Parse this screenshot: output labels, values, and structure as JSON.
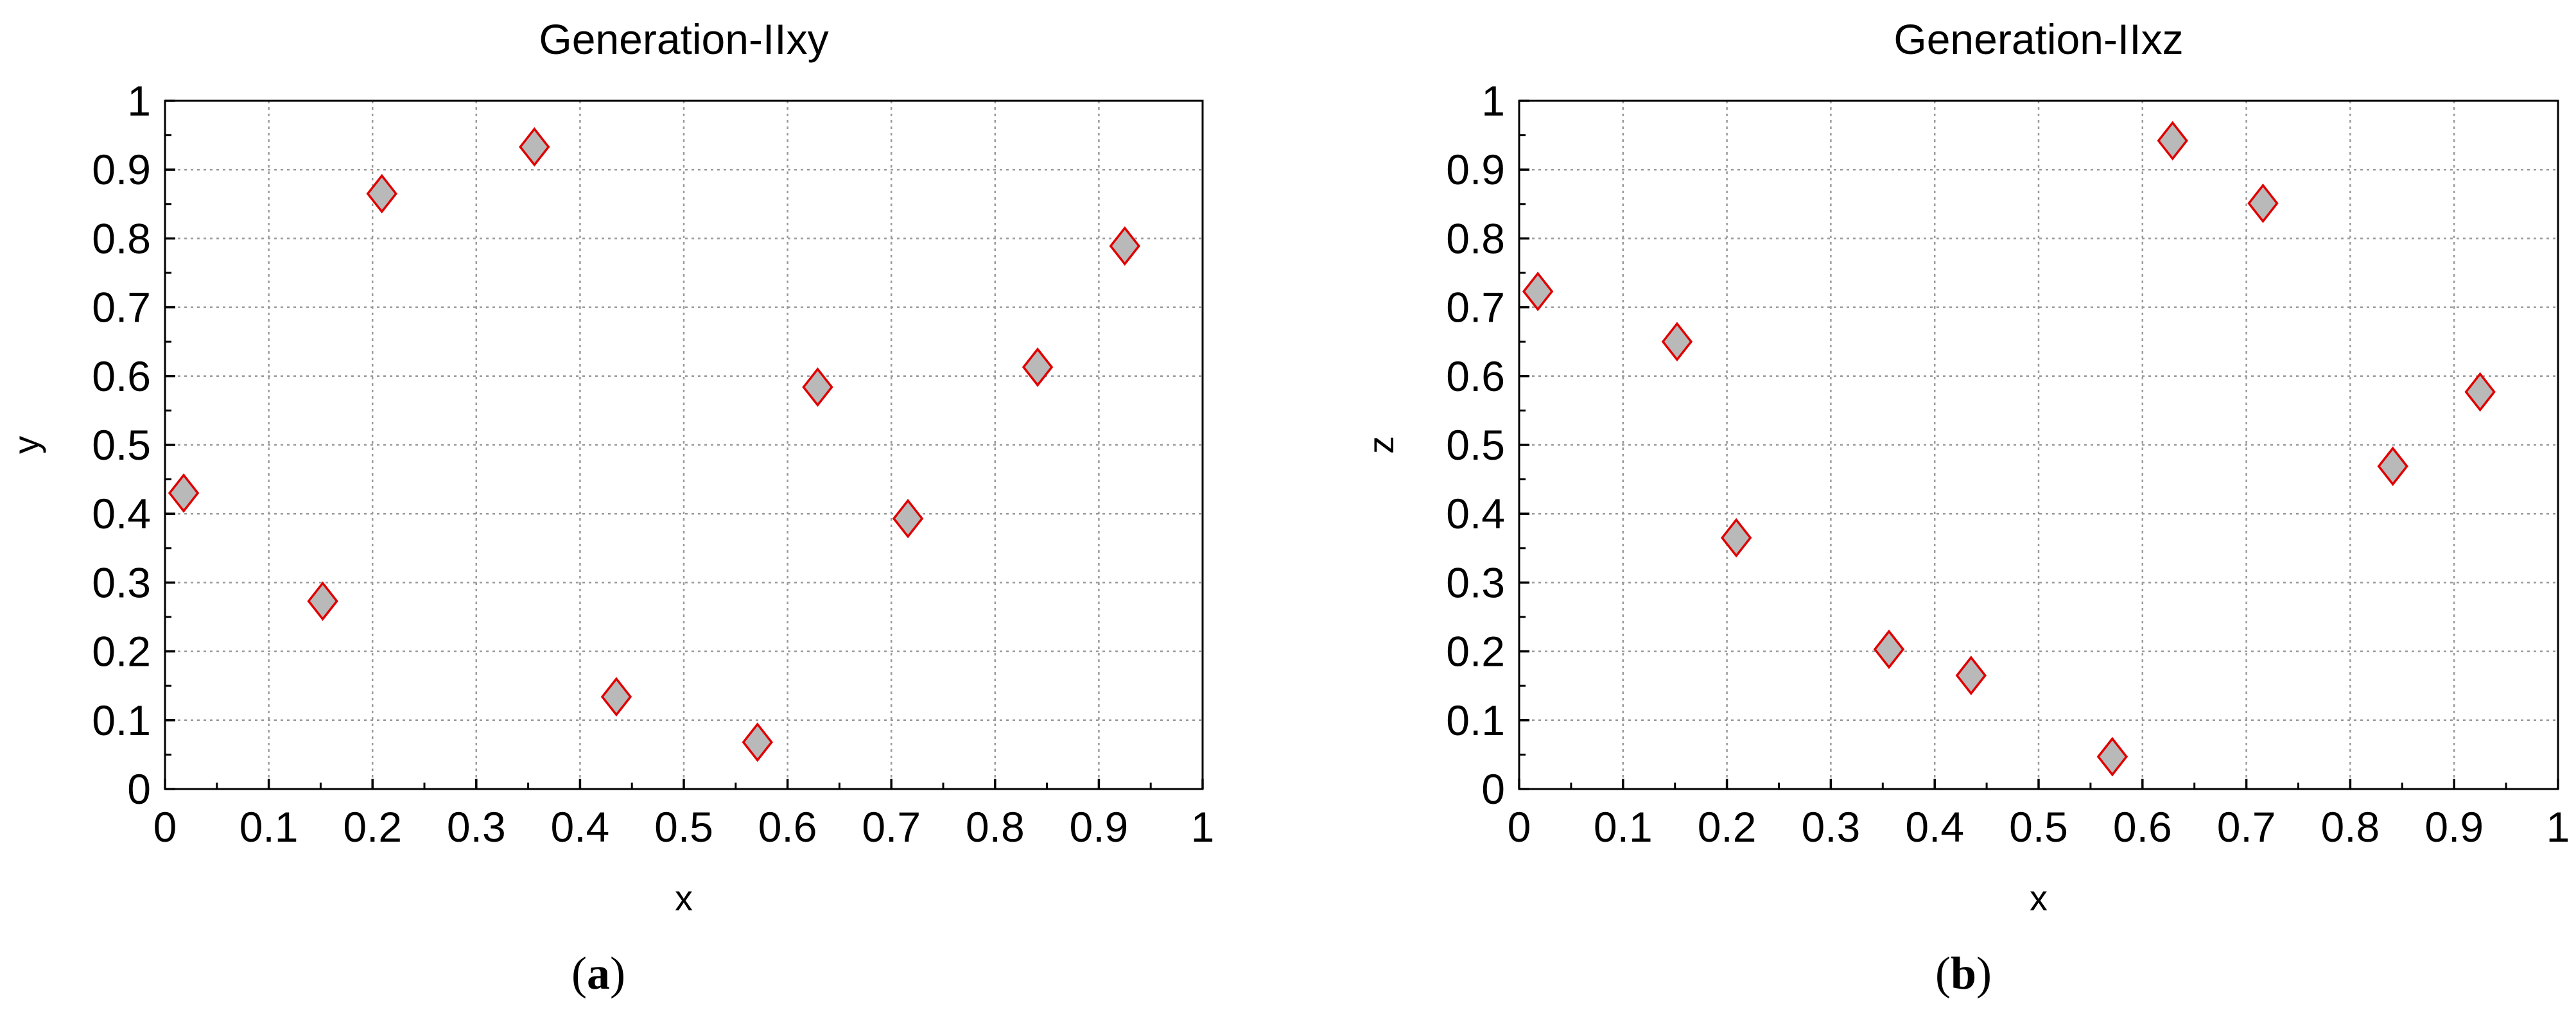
{
  "chart_data": [
    {
      "type": "scatter",
      "title": "Generation-IIxy",
      "xlabel": "x",
      "ylabel": "y",
      "xlim": [
        0,
        1
      ],
      "ylim": [
        0,
        1
      ],
      "xticks": [
        "0",
        "0.1",
        "0.2",
        "0.3",
        "0.4",
        "0.5",
        "0.6",
        "0.7",
        "0.8",
        "0.9",
        "1"
      ],
      "yticks": [
        "0",
        "0.1",
        "0.2",
        "0.3",
        "0.4",
        "0.5",
        "0.6",
        "0.7",
        "0.8",
        "0.9",
        "1"
      ],
      "grid": true,
      "marker": "diamond",
      "marker_fill": "#b9b9b9",
      "marker_edge": "#e00000",
      "caption_label": "a",
      "points": [
        {
          "x": 0.018,
          "y": 0.43
        },
        {
          "x": 0.152,
          "y": 0.273
        },
        {
          "x": 0.209,
          "y": 0.865
        },
        {
          "x": 0.356,
          "y": 0.933
        },
        {
          "x": 0.435,
          "y": 0.134
        },
        {
          "x": 0.571,
          "y": 0.068
        },
        {
          "x": 0.629,
          "y": 0.584
        },
        {
          "x": 0.716,
          "y": 0.393
        },
        {
          "x": 0.841,
          "y": 0.613
        },
        {
          "x": 0.925,
          "y": 0.789
        }
      ]
    },
    {
      "type": "scatter",
      "title": "Generation-IIxz",
      "xlabel": "x",
      "ylabel": "z",
      "xlim": [
        0,
        1
      ],
      "ylim": [
        0,
        1
      ],
      "xticks": [
        "0",
        "0.1",
        "0.2",
        "0.3",
        "0.4",
        "0.5",
        "0.6",
        "0.7",
        "0.8",
        "0.9",
        "1"
      ],
      "yticks": [
        "0",
        "0.1",
        "0.2",
        "0.3",
        "0.4",
        "0.5",
        "0.6",
        "0.7",
        "0.8",
        "0.9",
        "1"
      ],
      "grid": true,
      "marker": "diamond",
      "marker_fill": "#b9b9b9",
      "marker_edge": "#e00000",
      "caption_label": "b",
      "points": [
        {
          "x": 0.018,
          "y": 0.723
        },
        {
          "x": 0.152,
          "y": 0.65
        },
        {
          "x": 0.209,
          "y": 0.365
        },
        {
          "x": 0.356,
          "y": 0.203
        },
        {
          "x": 0.435,
          "y": 0.165
        },
        {
          "x": 0.571,
          "y": 0.047
        },
        {
          "x": 0.629,
          "y": 0.942
        },
        {
          "x": 0.716,
          "y": 0.851
        },
        {
          "x": 0.841,
          "y": 0.469
        },
        {
          "x": 0.925,
          "y": 0.577
        }
      ]
    }
  ]
}
